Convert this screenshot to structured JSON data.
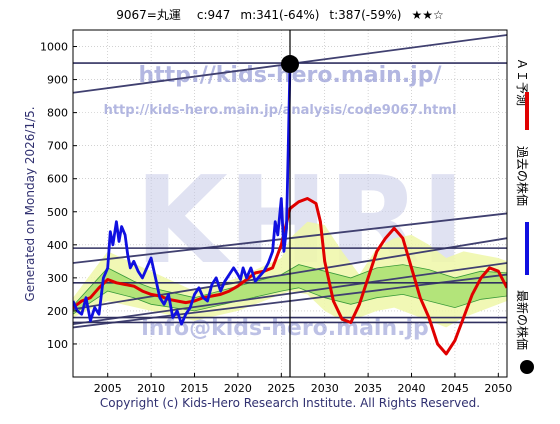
{
  "header": {
    "ticker": "9067=丸運",
    "current": "c:947",
    "mid": "m:341(-64%)",
    "target": "t:387(-59%)",
    "stars": "★★☆"
  },
  "side_left": "Generated on Monday 2026/1/5.",
  "legend": {
    "ai_label": "ＡＩ予測",
    "past_label": "過去の株価",
    "latest_label": "最新の株価"
  },
  "watermark": {
    "url": "http://kids-hero.main.jp/",
    "analysis_url": "http://kids-hero.main.jp/analysis/code9067.html",
    "logo": "KHRI",
    "email": "info@kids-hero.main.jp"
  },
  "footer": "Copyright (c) Kids-Hero Research Institute. All Rights Reserved.",
  "colors": {
    "history": "#1010e0",
    "forecast": "#e00000",
    "band_fill": "#eef7a8",
    "band_green": "#a8e070",
    "trend": "#404070",
    "watermark": "#9aa0d8",
    "latest_marker": "#000000"
  },
  "chart_data": {
    "type": "line",
    "xlim": [
      2001,
      2051
    ],
    "ylim": [
      0,
      1050
    ],
    "xticks": [
      2005,
      2010,
      2015,
      2020,
      2025,
      2030,
      2035,
      2040,
      2045,
      2050
    ],
    "yticks": [
      100,
      200,
      300,
      400,
      500,
      600,
      700,
      800,
      900,
      1000
    ],
    "grid": true,
    "latest_point": {
      "x": 2026.0,
      "y": 947
    },
    "horizontal_levels": [
      950,
      390,
      285,
      180,
      165
    ],
    "trend_lines": [
      {
        "x0": 2001,
        "y0": 860,
        "x1": 2051,
        "y1": 1035
      },
      {
        "x0": 2001,
        "y0": 345,
        "x1": 2051,
        "y1": 495
      },
      {
        "x0": 2001,
        "y0": 205,
        "x1": 2051,
        "y1": 420
      },
      {
        "x0": 2001,
        "y0": 160,
        "x1": 2051,
        "y1": 345
      },
      {
        "x0": 2001,
        "y0": 150,
        "x1": 2051,
        "y1": 310
      }
    ],
    "series": [
      {
        "key": "past",
        "x": [
          2001,
          2001.5,
          2002,
          2002.5,
          2003,
          2003.5,
          2004,
          2004.5,
          2005,
          2005.3,
          2005.6,
          2006,
          2006.3,
          2006.6,
          2007,
          2007.3,
          2007.6,
          2008,
          2008.5,
          2009,
          2009.5,
          2010,
          2010.5,
          2011,
          2011.5,
          2012,
          2012.5,
          2013,
          2013.5,
          2014,
          2014.5,
          2015,
          2015.5,
          2016,
          2016.5,
          2017,
          2017.5,
          2018,
          2018.5,
          2019,
          2019.5,
          2020,
          2020.3,
          2020.6,
          2021,
          2021.5,
          2022,
          2022.5,
          2023,
          2023.5,
          2024,
          2024.3,
          2024.6,
          2025,
          2025.3,
          2025.6,
          2025.8,
          2026.0
        ],
        "y": [
          230,
          200,
          190,
          240,
          170,
          210,
          190,
          300,
          330,
          440,
          400,
          470,
          410,
          455,
          430,
          370,
          330,
          350,
          320,
          300,
          330,
          360,
          300,
          240,
          220,
          250,
          180,
          200,
          160,
          190,
          210,
          250,
          270,
          240,
          230,
          280,
          300,
          260,
          290,
          310,
          330,
          310,
          295,
          330,
          300,
          330,
          290,
          305,
          320,
          345,
          380,
          470,
          430,
          540,
          380,
          450,
          700,
          947
        ]
      },
      {
        "key": "forecast",
        "x": [
          2001,
          2002,
          2003,
          2004,
          2005,
          2006,
          2007,
          2008,
          2009,
          2010,
          2011,
          2012,
          2013,
          2014,
          2015,
          2016,
          2017,
          2018,
          2019,
          2020,
          2021,
          2022,
          2023,
          2024,
          2025,
          2026,
          2027,
          2028,
          2029,
          2029.5,
          2030,
          2031,
          2032,
          2033,
          2034,
          2035,
          2036,
          2037,
          2038,
          2039,
          2040,
          2041,
          2042,
          2043,
          2044,
          2045,
          2046,
          2047,
          2048,
          2049,
          2050,
          2051
        ],
        "y": [
          210,
          230,
          240,
          270,
          295,
          285,
          280,
          275,
          260,
          250,
          245,
          235,
          230,
          225,
          230,
          240,
          245,
          250,
          260,
          275,
          295,
          315,
          320,
          330,
          400,
          510,
          530,
          540,
          525,
          470,
          350,
          230,
          175,
          165,
          220,
          300,
          380,
          420,
          450,
          420,
          330,
          240,
          180,
          100,
          70,
          110,
          180,
          250,
          300,
          330,
          320,
          270
        ]
      },
      {
        "key": "band_upper",
        "x": [
          2001,
          2005,
          2010,
          2015,
          2020,
          2025,
          2026,
          2028,
          2030,
          2032,
          2034,
          2036,
          2038,
          2040,
          2042,
          2044,
          2046,
          2048,
          2050,
          2051
        ],
        "y": [
          240,
          380,
          320,
          260,
          300,
          360,
          420,
          470,
          460,
          380,
          310,
          390,
          420,
          430,
          400,
          360,
          380,
          370,
          360,
          350
        ]
      },
      {
        "key": "band_lower",
        "x": [
          2001,
          2005,
          2010,
          2015,
          2020,
          2025,
          2026,
          2028,
          2030,
          2032,
          2034,
          2036,
          2038,
          2040,
          2042,
          2044,
          2046,
          2048,
          2050,
          2051
        ],
        "y": [
          180,
          230,
          200,
          170,
          200,
          250,
          260,
          250,
          200,
          170,
          180,
          200,
          210,
          190,
          170,
          150,
          180,
          200,
          220,
          230
        ]
      },
      {
        "key": "green_upper",
        "x": [
          2001,
          2005,
          2008,
          2010,
          2015,
          2020,
          2025,
          2027,
          2030,
          2033,
          2036,
          2039,
          2042,
          2045,
          2048,
          2051
        ],
        "y": [
          215,
          330,
          290,
          270,
          240,
          275,
          310,
          340,
          320,
          300,
          330,
          340,
          325,
          300,
          320,
          315
        ]
      },
      {
        "key": "green_lower",
        "x": [
          2001,
          2005,
          2008,
          2010,
          2015,
          2020,
          2025,
          2027,
          2030,
          2033,
          2036,
          2039,
          2042,
          2045,
          2048,
          2051
        ],
        "y": [
          190,
          260,
          240,
          220,
          200,
          230,
          260,
          270,
          240,
          220,
          240,
          250,
          230,
          210,
          235,
          245
        ]
      }
    ]
  }
}
